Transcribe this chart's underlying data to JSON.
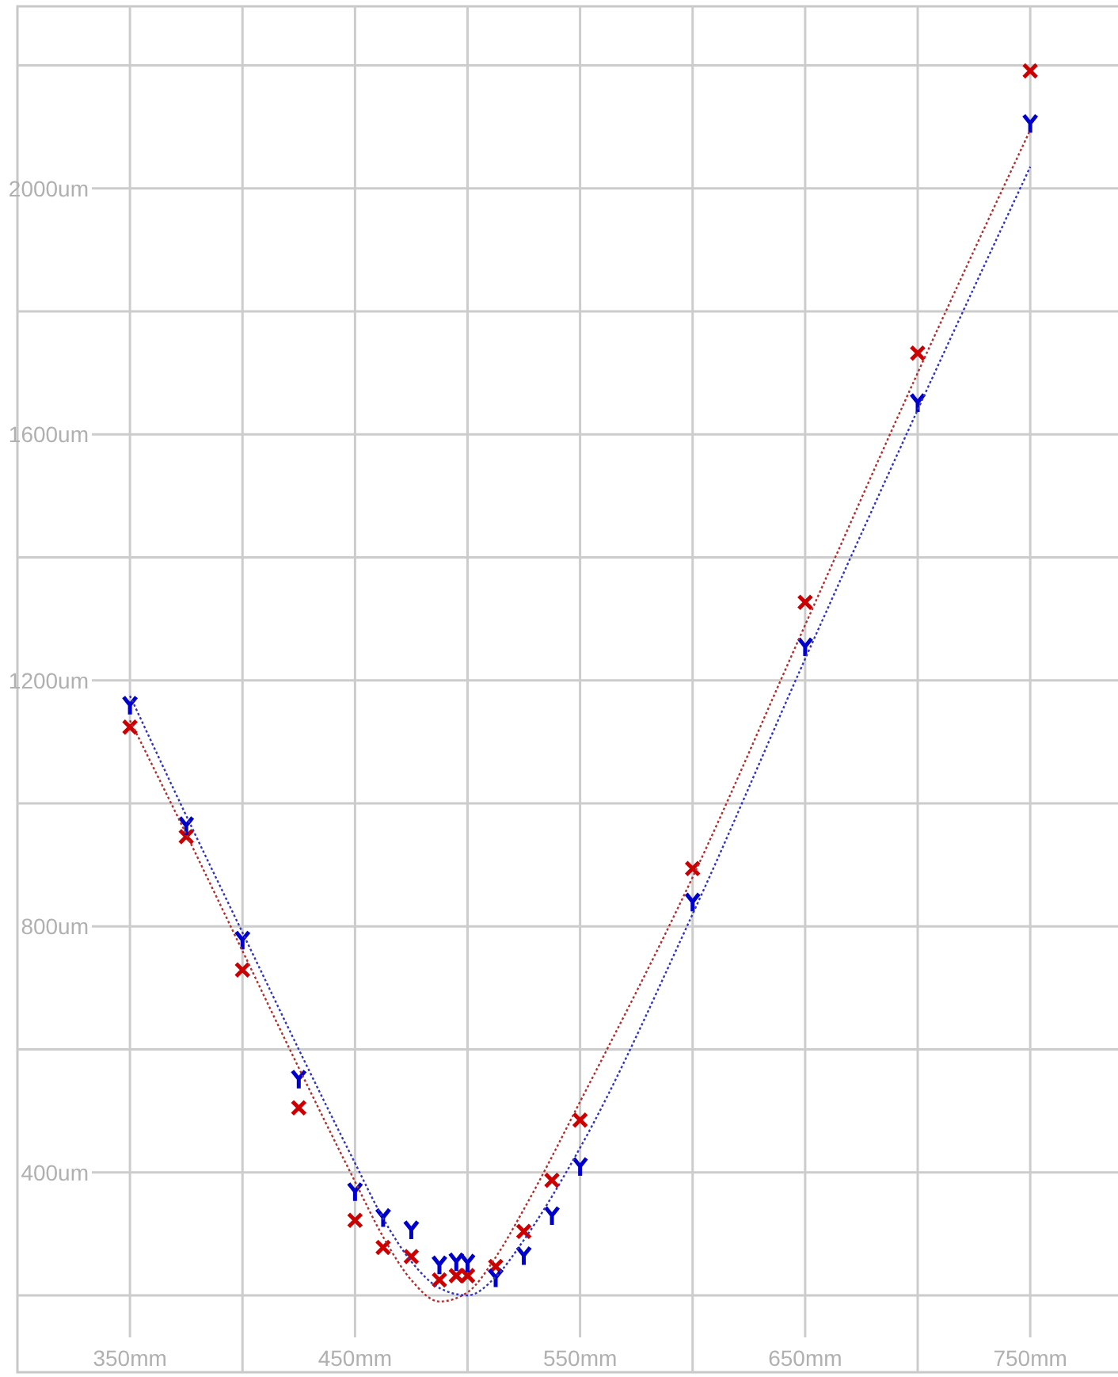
{
  "chart_data": {
    "type": "scatter",
    "xlim": [
      300,
      789
    ],
    "ylim": [
      75,
      2296
    ],
    "xticks": [
      {
        "value": 350,
        "label": "350mm"
      },
      {
        "value": 400,
        "label": null
      },
      {
        "value": 450,
        "label": "450mm"
      },
      {
        "value": 500,
        "label": null
      },
      {
        "value": 550,
        "label": "550mm"
      },
      {
        "value": 600,
        "label": null
      },
      {
        "value": 650,
        "label": "650mm"
      },
      {
        "value": 700,
        "label": null
      },
      {
        "value": 750,
        "label": "750mm"
      }
    ],
    "yticks": [
      {
        "value": 200,
        "label": null
      },
      {
        "value": 400,
        "label": "400um"
      },
      {
        "value": 600,
        "label": null
      },
      {
        "value": 800,
        "label": "800um"
      },
      {
        "value": 1000,
        "label": null
      },
      {
        "value": 1200,
        "label": "1200um"
      },
      {
        "value": 1400,
        "label": null
      },
      {
        "value": 1600,
        "label": "1600um"
      },
      {
        "value": 1800,
        "label": null
      },
      {
        "value": 2000,
        "label": "2000um"
      },
      {
        "value": 2200,
        "label": null
      }
    ],
    "grid": true,
    "series": [
      {
        "marker": "cross",
        "color": "#cc0000",
        "x": [
          350,
          375,
          400,
          425,
          450,
          462.5,
          475,
          487.5,
          495,
          500,
          512.5,
          525,
          537.5,
          550,
          600,
          650,
          700,
          750
        ],
        "values": [
          1124,
          946,
          729,
          505,
          322,
          278,
          263,
          225,
          232,
          232,
          247,
          304,
          387,
          485,
          894,
          1327,
          1732,
          2191
        ]
      },
      {
        "color": "#0000cc",
        "x": [
          350,
          375,
          400,
          425,
          450,
          462.5,
          475,
          487.5,
          495,
          500,
          512.5,
          525,
          537.5,
          550,
          600,
          650,
          700,
          750
        ],
        "values": [
          1160,
          964,
          778,
          552,
          369,
          327,
          307,
          250,
          255,
          253,
          229,
          265,
          330,
          410,
          840,
          1255,
          1652,
          2106
        ]
      },
      {
        "type": "line",
        "line_style": "dotted",
        "marker": "none",
        "color": "#b03030",
        "x": [
          350,
          375,
          400,
          425,
          450,
          462.5,
          475,
          487.5,
          500,
          512.5,
          525,
          550,
          600,
          650,
          700,
          750
        ],
        "values": [
          1135,
          950,
          760,
          570,
          385,
          295,
          225,
          190,
          205,
          262,
          340,
          515,
          880,
          1290,
          1700,
          2095
        ]
      },
      {
        "type": "line",
        "line_style": "dotted",
        "marker": "none",
        "color": "#3333bb",
        "x": [
          350,
          375,
          400,
          425,
          450,
          462.5,
          475,
          487.5,
          500,
          512.5,
          525,
          550,
          600,
          650,
          700,
          750
        ],
        "values": [
          1175,
          980,
          790,
          600,
          415,
          325,
          255,
          212,
          200,
          230,
          290,
          440,
          820,
          1235,
          1640,
          2035
        ]
      }
    ]
  }
}
